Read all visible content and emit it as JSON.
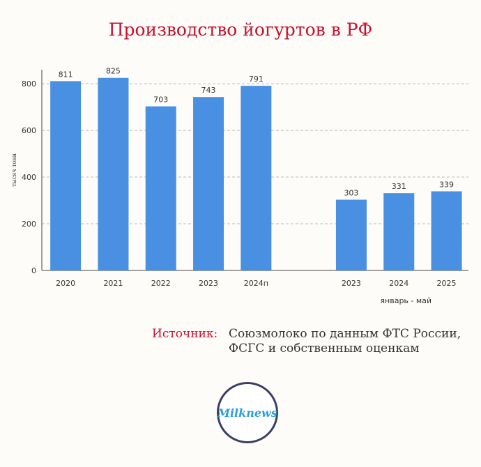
{
  "title": "Производство йогуртов в РФ",
  "source": {
    "label": "Источник:",
    "lines": [
      "Союзмолоко по данным ФТС России,",
      "ФСГС и собственным оценкам"
    ]
  },
  "logo": {
    "text": "Milknews"
  },
  "colors": {
    "bar": "#4a90e2",
    "title": "#c8102e",
    "grid": "#bbbbbb"
  },
  "chart_data": {
    "type": "bar",
    "ylabel": "тысяч тонн",
    "ylim": [
      0,
      860
    ],
    "yticks": [
      0,
      200,
      400,
      600,
      800
    ],
    "grid": true,
    "groups": [
      {
        "label": "",
        "categories": [
          "2020",
          "2021",
          "2022",
          "2023",
          "2024п"
        ],
        "values": [
          811,
          825,
          703,
          743,
          791
        ]
      },
      {
        "label": "январь - май",
        "categories": [
          "2023",
          "2024",
          "2025"
        ],
        "values": [
          303,
          331,
          339
        ]
      }
    ]
  }
}
